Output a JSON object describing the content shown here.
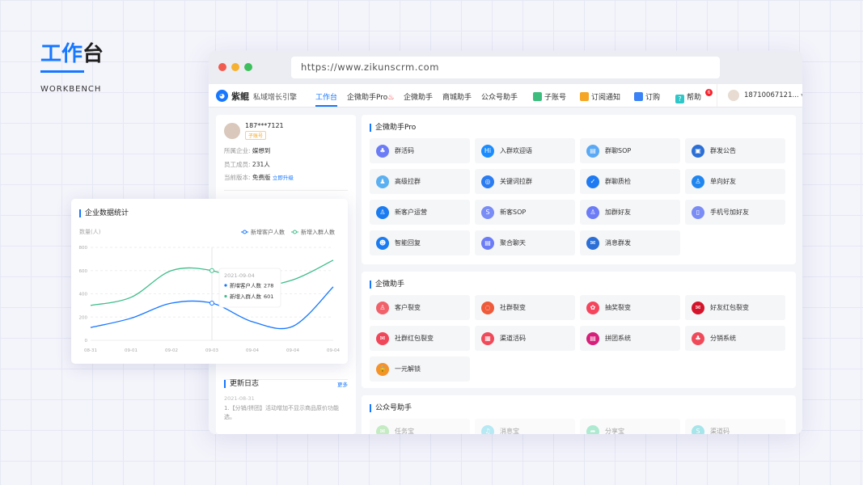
{
  "hero": {
    "title_a": "工作",
    "title_b": "台",
    "subtitle": "WORKBENCH"
  },
  "browser": {
    "url": "https://www.zikunscrm.com"
  },
  "nav": {
    "brand": "紫鲲",
    "slogan": "私域增长引擎",
    "items": [
      "工作台",
      "企微助手Pro",
      "企微助手",
      "商城助手",
      "公众号助手"
    ],
    "active": 0,
    "right": [
      {
        "label": "子账号",
        "icon": "user-icon",
        "color": "#3dbd7d"
      },
      {
        "label": "订阅通知",
        "icon": "bookmark-icon",
        "color": "#f5a623"
      },
      {
        "label": "订购",
        "icon": "cart-icon",
        "color": "#3b82f6"
      },
      {
        "label": "帮助",
        "icon": "question-icon",
        "color": "#2ec7c9"
      }
    ],
    "help_badge": "6",
    "account": "18710067121..."
  },
  "profile": {
    "phone": "187***7121",
    "tag": "子账号",
    "company_label": "所属企业:",
    "company": "媒想到",
    "staff_label": "员工成员:",
    "staff": "231人",
    "version_label": "当前版本:",
    "version": "免费版",
    "upgrade": "立即升级"
  },
  "changelog": {
    "title": "更新日志",
    "more": "更多",
    "date": "2021-08-31",
    "entry": "1.【分销/拼团】活动增加不显示商品原价功能选。"
  },
  "chart_data": {
    "type": "line",
    "title": "企业数据统计",
    "ylabel": "数量(人)",
    "ylim": [
      0,
      800
    ],
    "yticks": [
      0,
      200,
      400,
      600,
      800
    ],
    "grid": true,
    "legend": "top-right",
    "categories": [
      "08-31",
      "09-01",
      "09-02",
      "09-03",
      "09-04",
      "09-04",
      "09-04"
    ],
    "series": [
      {
        "name": "新增客户人数",
        "color": "#1677ff",
        "values": [
          110,
          190,
          320,
          320,
          160,
          120,
          460
        ]
      },
      {
        "name": "新增入群人数",
        "color": "#3dbd8a",
        "values": [
          300,
          370,
          600,
          600,
          470,
          520,
          690
        ]
      }
    ],
    "tooltip": {
      "date": "2021-09-04",
      "rows": [
        {
          "name": "新增客户人数",
          "value": "278"
        },
        {
          "name": "新增入群人数",
          "value": "601"
        }
      ]
    }
  },
  "sections": [
    {
      "title": "企微助手Pro",
      "items": [
        {
          "label": "群活码",
          "color": "#6b7cf6",
          "glyph": "♣"
        },
        {
          "label": "入群欢迎语",
          "color": "#1a8cff",
          "glyph": "Hi"
        },
        {
          "label": "群聊SOP",
          "color": "#5aa9f5",
          "glyph": "▤"
        },
        {
          "label": "群发公告",
          "color": "#2b6fd6",
          "glyph": "▣"
        },
        {
          "label": "高级拉群",
          "color": "#5ab0f0",
          "glyph": "♟"
        },
        {
          "label": "关键词拉群",
          "color": "#2a7cf0",
          "glyph": "◎"
        },
        {
          "label": "群聊质检",
          "color": "#1f7bf2",
          "glyph": "✓"
        },
        {
          "label": "单向好友",
          "color": "#1f86f0",
          "glyph": "♙"
        },
        {
          "label": "新客户运营",
          "color": "#1a7cf0",
          "glyph": "♙"
        },
        {
          "label": "新客SOP",
          "color": "#7a8cf5",
          "glyph": "S"
        },
        {
          "label": "加群好友",
          "color": "#6b7cf6",
          "glyph": "♙"
        },
        {
          "label": "手机号加好友",
          "color": "#7a8cf5",
          "glyph": "▯"
        },
        {
          "label": "智能回复",
          "color": "#1a7cf0",
          "glyph": "☻"
        },
        {
          "label": "聚合聊天",
          "color": "#6b7cf6",
          "glyph": "▤"
        },
        {
          "label": "消息群发",
          "color": "#2b6fd6",
          "glyph": "✉"
        }
      ]
    },
    {
      "title": "企微助手",
      "items": [
        {
          "label": "客户裂变",
          "color": "#f0616a",
          "glyph": "♙"
        },
        {
          "label": "社群裂变",
          "color": "#ee5a3a",
          "glyph": "◌"
        },
        {
          "label": "抽奖裂变",
          "color": "#f5455c",
          "glyph": "✿"
        },
        {
          "label": "好友红包裂变",
          "color": "#d4142a",
          "glyph": "✉"
        },
        {
          "label": "社群红包裂变",
          "color": "#f0465a",
          "glyph": "✉"
        },
        {
          "label": "渠道活码",
          "color": "#f04a5a",
          "glyph": "▦"
        },
        {
          "label": "拼团系统",
          "color": "#d61f7a",
          "glyph": "▤"
        },
        {
          "label": "分销系统",
          "color": "#f04a5a",
          "glyph": "♣"
        },
        {
          "label": "一元解锁",
          "color": "#f5922a",
          "glyph": "🔒"
        }
      ]
    },
    {
      "title": "公众号助手",
      "items": [
        {
          "label": "任务宝",
          "color": "#7ed37a",
          "glyph": "✉"
        },
        {
          "label": "消息宝",
          "color": "#5ccfe6",
          "glyph": "♫"
        },
        {
          "label": "分享宝",
          "color": "#4cd19a",
          "glyph": "➦"
        },
        {
          "label": "渠道码",
          "color": "#3cc6d0",
          "glyph": "S"
        }
      ]
    }
  ]
}
